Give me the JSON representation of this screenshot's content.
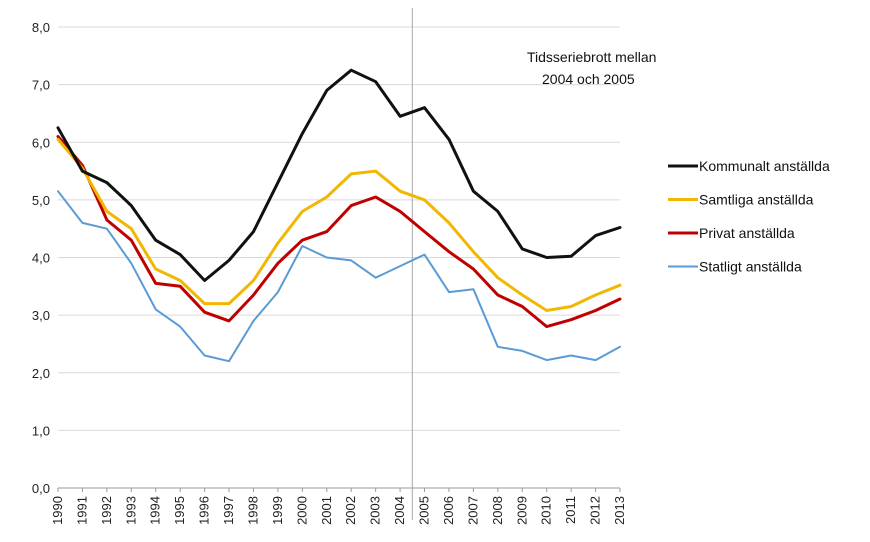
{
  "chart_data": {
    "type": "line",
    "title": "",
    "xlabel": "",
    "ylabel": "",
    "ylim": [
      0,
      8
    ],
    "yticks": [
      "0,0",
      "1,0",
      "2,0",
      "3,0",
      "4,0",
      "5,0",
      "6,0",
      "7,0",
      "8,0"
    ],
    "categories": [
      "1990",
      "1991",
      "1992",
      "1993",
      "1994",
      "1995",
      "1996",
      "1997",
      "1998",
      "1999",
      "2000",
      "2001",
      "2002",
      "2003",
      "2004",
      "2005",
      "2006",
      "2007",
      "2008",
      "2009",
      "2010",
      "2011",
      "2012",
      "2013"
    ],
    "grid": "horizontal",
    "legend_position": "right",
    "annotation": {
      "line1": "Tidsseriebrott  mellan",
      "line2": "2004 och 2005",
      "break_between": [
        "2004",
        "2005"
      ]
    },
    "series": [
      {
        "name": "Kommunalt anställda",
        "color": "#111111",
        "width": 3,
        "values": [
          6.25,
          5.5,
          5.3,
          4.9,
          4.3,
          4.05,
          3.6,
          3.95,
          4.45,
          5.3,
          6.15,
          6.9,
          7.25,
          7.05,
          6.45,
          6.6,
          6.05,
          5.15,
          4.8,
          4.15,
          4.0,
          4.02,
          4.38,
          4.52
        ]
      },
      {
        "name": "Samtliga anställda",
        "color": "#f2b705",
        "width": 3,
        "values": [
          6.05,
          5.55,
          4.8,
          4.5,
          3.8,
          3.6,
          3.2,
          3.2,
          3.6,
          4.25,
          4.8,
          5.05,
          5.45,
          5.5,
          5.15,
          5.0,
          4.6,
          4.1,
          3.65,
          3.35,
          3.08,
          3.15,
          3.35,
          3.52
        ]
      },
      {
        "name": "Privat anställda",
        "color": "#c00000",
        "width": 3,
        "values": [
          6.1,
          5.6,
          4.65,
          4.3,
          3.55,
          3.5,
          3.05,
          2.9,
          3.35,
          3.9,
          4.3,
          4.45,
          4.9,
          5.05,
          4.8,
          4.45,
          4.1,
          3.8,
          3.35,
          3.15,
          2.8,
          2.92,
          3.08,
          3.28
        ]
      },
      {
        "name": "Statligt anställda",
        "color": "#5b9bd5",
        "width": 2,
        "values": [
          5.15,
          4.6,
          4.5,
          3.9,
          3.1,
          2.8,
          2.3,
          2.2,
          2.9,
          3.4,
          4.2,
          4.0,
          3.95,
          3.65,
          3.85,
          4.05,
          3.4,
          3.45,
          2.45,
          2.38,
          2.22,
          2.3,
          2.22,
          2.45
        ]
      }
    ]
  }
}
